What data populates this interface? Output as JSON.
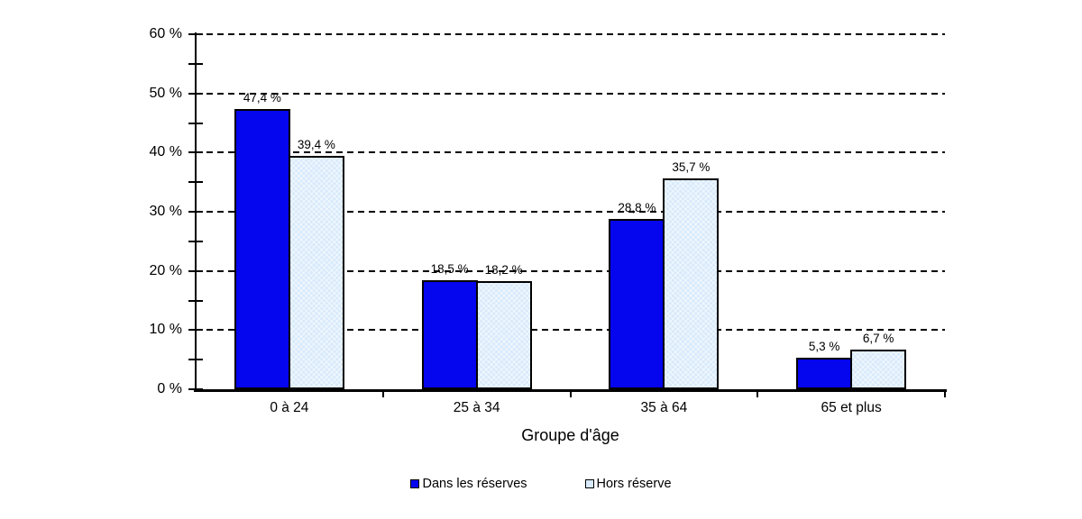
{
  "chart_data": {
    "type": "bar",
    "title": "",
    "xlabel": "Groupe d'âge",
    "ylabel": "",
    "categories": [
      "0 à 24",
      "25 à 34",
      "35 à 64",
      "65 et plus"
    ],
    "series": [
      {
        "name": "Dans les réserves",
        "color": "#0505ee",
        "values": [
          47.4,
          18.5,
          28.8,
          5.3
        ],
        "labels": [
          "47,4 %",
          "18,5 %",
          "28,8 %",
          "5,3 %"
        ]
      },
      {
        "name": "Hors réserve",
        "color": "#d8eafb",
        "values": [
          39.4,
          18.2,
          35.7,
          6.7
        ],
        "labels": [
          "39,4 %",
          "18,2 %",
          "35,7 %",
          "6,7 %"
        ]
      }
    ],
    "ylim": [
      0,
      60
    ],
    "ytick_step": 10,
    "ytick_minor_step": 5,
    "ytick_labels": [
      "0 %",
      "10 %",
      "20 %",
      "30 %",
      "40 %",
      "50 %",
      "60 %"
    ],
    "grid": "horizontal-dashed",
    "legend_position": "bottom",
    "bar_outline_color": "#000000",
    "axis_color": "#000000",
    "background_color": "#ffffff"
  }
}
